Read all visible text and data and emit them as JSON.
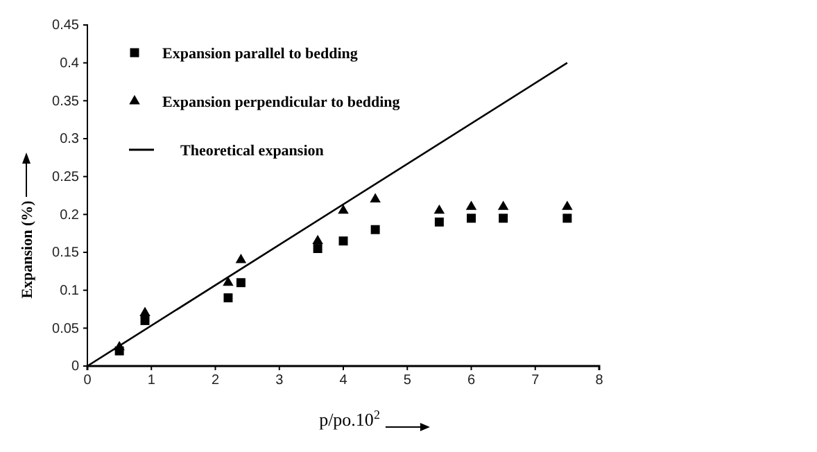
{
  "chart_data": {
    "type": "scatter",
    "xlabel": "p/po.10$^{2}$",
    "ylabel": "Expansion (%)",
    "xlim": [
      0,
      8
    ],
    "ylim": [
      0,
      0.45
    ],
    "xticks": [
      0,
      1,
      2,
      3,
      4,
      5,
      6,
      7,
      8
    ],
    "yticks": [
      0,
      0.05,
      0.1,
      0.15,
      0.2,
      0.25,
      0.3,
      0.35,
      0.4,
      0.45
    ],
    "grid": false,
    "legend": "top left",
    "series": [
      {
        "name": "Expansion parallel to bedding",
        "color": "#000000",
        "marker": "square",
        "x": [
          0.5,
          0.9,
          2.2,
          2.4,
          3.6,
          4.0,
          4.5,
          5.5,
          6.0,
          6.5,
          7.5
        ],
        "values": [
          0.02,
          0.06,
          0.09,
          0.11,
          0.155,
          0.165,
          0.18,
          0.19,
          0.195,
          0.195,
          0.195
        ]
      },
      {
        "name": "Expansion perpendicular to bedding",
        "color": "#000000",
        "marker": "triangle",
        "x": [
          0.5,
          0.9,
          2.2,
          2.4,
          3.6,
          4.0,
          4.5,
          5.5,
          6.0,
          6.5,
          7.5
        ],
        "values": [
          0.025,
          0.07,
          0.11,
          0.14,
          0.165,
          0.205,
          0.22,
          0.205,
          0.21,
          0.21,
          0.21
        ]
      },
      {
        "name": "Theoretical expansion",
        "type": "line",
        "color": "#000000",
        "marker": "none",
        "line_style": "solid",
        "x": [
          0,
          7.5
        ],
        "values": [
          0,
          0.4
        ]
      }
    ]
  }
}
